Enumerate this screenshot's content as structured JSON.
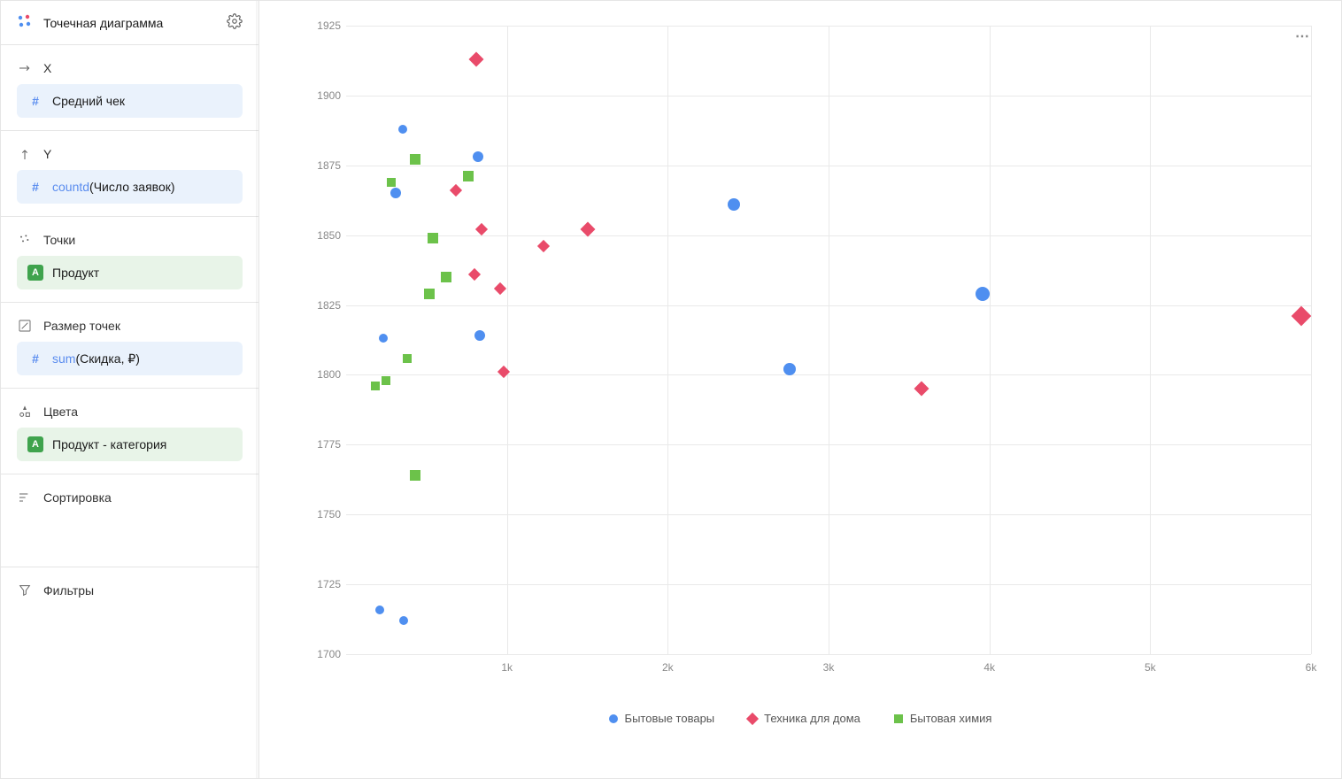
{
  "panel": {
    "title": "Точечная диаграмма",
    "sections": {
      "x": {
        "label": "X",
        "field": "Средний чек"
      },
      "y": {
        "label": "Y",
        "func": "countd",
        "field": "Число заявок"
      },
      "points": {
        "label": "Точки",
        "field": "Продукт"
      },
      "size": {
        "label": "Размер точек",
        "func": "sum",
        "field": "Скидка, ₽"
      },
      "colors": {
        "label": "Цвета",
        "field": "Продукт - категория"
      },
      "sort": {
        "label": "Сортировка"
      },
      "filters": {
        "label": "Фильтры"
      }
    }
  },
  "chart": {
    "type": "scatter",
    "x_axis": {
      "min": 0,
      "max": 6000,
      "ticks": [
        1000,
        2000,
        3000,
        4000,
        5000,
        6000
      ],
      "tick_labels": [
        "1k",
        "2k",
        "3k",
        "4k",
        "5k",
        "6k"
      ],
      "grid_color": "#e9e9e9"
    },
    "y_axis": {
      "min": 1700,
      "max": 1925,
      "ticks": [
        1700,
        1725,
        1750,
        1775,
        1800,
        1825,
        1850,
        1875,
        1900,
        1925
      ],
      "grid_color": "#e9e9e9"
    },
    "background_color": "#ffffff",
    "legend": [
      {
        "label": "Бытовые товары",
        "shape": "circle",
        "color": "#4f8ff0"
      },
      {
        "label": "Техника для дома",
        "shape": "diamond",
        "color": "#e94b6a"
      },
      {
        "label": "Бытовая химия",
        "shape": "square",
        "color": "#6cc24a"
      }
    ],
    "series": [
      {
        "shape": "circle",
        "color": "#4f8ff0",
        "points": [
          {
            "x": 350,
            "y": 1888,
            "r": 5
          },
          {
            "x": 820,
            "y": 1878,
            "r": 6
          },
          {
            "x": 310,
            "y": 1865,
            "r": 6
          },
          {
            "x": 2410,
            "y": 1861,
            "r": 7
          },
          {
            "x": 3960,
            "y": 1829,
            "r": 8
          },
          {
            "x": 830,
            "y": 1814,
            "r": 6
          },
          {
            "x": 230,
            "y": 1813,
            "r": 5
          },
          {
            "x": 2760,
            "y": 1802,
            "r": 7
          },
          {
            "x": 210,
            "y": 1716,
            "r": 5
          },
          {
            "x": 360,
            "y": 1712,
            "r": 5
          }
        ]
      },
      {
        "shape": "diamond",
        "color": "#e94b6a",
        "points": [
          {
            "x": 810,
            "y": 1913,
            "r": 6
          },
          {
            "x": 680,
            "y": 1866,
            "r": 5
          },
          {
            "x": 840,
            "y": 1852,
            "r": 5
          },
          {
            "x": 1500,
            "y": 1852,
            "r": 6
          },
          {
            "x": 1230,
            "y": 1846,
            "r": 5
          },
          {
            "x": 800,
            "y": 1836,
            "r": 5
          },
          {
            "x": 960,
            "y": 1831,
            "r": 5
          },
          {
            "x": 5940,
            "y": 1821,
            "r": 8
          },
          {
            "x": 980,
            "y": 1801,
            "r": 5
          },
          {
            "x": 3580,
            "y": 1795,
            "r": 6
          }
        ]
      },
      {
        "shape": "square",
        "color": "#6cc24a",
        "points": [
          {
            "x": 430,
            "y": 1877,
            "r": 6
          },
          {
            "x": 760,
            "y": 1871,
            "r": 6
          },
          {
            "x": 280,
            "y": 1869,
            "r": 5
          },
          {
            "x": 540,
            "y": 1849,
            "r": 6
          },
          {
            "x": 620,
            "y": 1835,
            "r": 6
          },
          {
            "x": 520,
            "y": 1829,
            "r": 6
          },
          {
            "x": 380,
            "y": 1806,
            "r": 5
          },
          {
            "x": 250,
            "y": 1798,
            "r": 5
          },
          {
            "x": 180,
            "y": 1796,
            "r": 5
          },
          {
            "x": 430,
            "y": 1764,
            "r": 6
          }
        ]
      }
    ]
  }
}
